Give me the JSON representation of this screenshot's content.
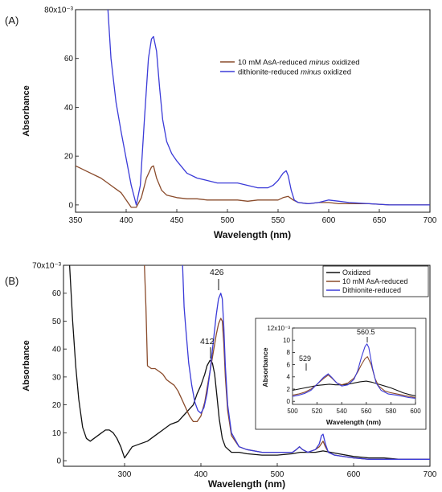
{
  "chart_data": [
    {
      "panel_label": "(A)",
      "type": "line",
      "xlabel": "Wavelength (nm)",
      "ylabel": "Absorbance",
      "xlim": [
        350,
        700
      ],
      "ylim": [
        -0.003,
        0.08
      ],
      "x_ticks": [
        350,
        400,
        450,
        500,
        550,
        600,
        650,
        700
      ],
      "x_tick_labels": [
        "350",
        "400",
        "450",
        "500",
        "550",
        "600",
        "650",
        "700"
      ],
      "y_ticks": [
        0,
        0.02,
        0.04,
        0.06,
        0.08
      ],
      "y_tick_labels": [
        "0",
        "20",
        "40",
        "60",
        "80x10⁻³"
      ],
      "legend_placement": "center-right",
      "series": [
        {
          "name": "10 mM AsA-reduced minus oxidized",
          "legend": [
            "10 mM AsA-reduced ",
            "minus",
            " oxidized"
          ],
          "color": "#8a4b2b",
          "x": [
            350,
            355,
            360,
            365,
            370,
            375,
            380,
            385,
            390,
            395,
            400,
            405,
            410,
            415,
            420,
            425,
            427,
            430,
            435,
            440,
            450,
            460,
            470,
            480,
            490,
            500,
            510,
            520,
            530,
            540,
            550,
            555,
            560,
            565,
            570,
            580,
            590,
            600,
            610,
            620,
            640,
            660,
            680,
            700
          ],
          "y": [
            0.016,
            0.015,
            0.014,
            0.013,
            0.012,
            0.011,
            0.0095,
            0.008,
            0.0065,
            0.005,
            0.002,
            -0.001,
            -0.001,
            0.003,
            0.011,
            0.0155,
            0.016,
            0.011,
            0.006,
            0.004,
            0.003,
            0.0025,
            0.0025,
            0.002,
            0.002,
            0.002,
            0.002,
            0.0015,
            0.002,
            0.002,
            0.002,
            0.003,
            0.0035,
            0.002,
            0.001,
            0.0005,
            0.001,
            0.001,
            0.0005,
            0.0005,
            0.0005,
            0.0,
            0.0,
            0.0
          ]
        },
        {
          "name": "dithionite-reduced minus oxidized",
          "legend": [
            "dithionite-reduced ",
            "minus",
            " oxidized"
          ],
          "color": "#3b3bd8",
          "x": [
            382,
            385,
            390,
            395,
            400,
            405,
            410,
            414,
            418,
            422,
            425,
            427,
            430,
            433,
            436,
            440,
            445,
            450,
            460,
            470,
            480,
            490,
            500,
            510,
            520,
            530,
            540,
            545,
            550,
            555,
            558,
            560,
            563,
            566,
            570,
            580,
            590,
            600,
            610,
            620,
            640,
            660,
            680,
            700
          ],
          "y": [
            0.08,
            0.06,
            0.042,
            0.03,
            0.019,
            0.008,
            0.0,
            0.008,
            0.035,
            0.06,
            0.068,
            0.069,
            0.063,
            0.048,
            0.035,
            0.026,
            0.021,
            0.018,
            0.013,
            0.011,
            0.01,
            0.009,
            0.009,
            0.009,
            0.008,
            0.007,
            0.007,
            0.008,
            0.01,
            0.013,
            0.014,
            0.012,
            0.006,
            0.002,
            0.001,
            0.0005,
            0.001,
            0.002,
            0.0015,
            0.001,
            0.0005,
            0.0,
            0.0,
            0.0
          ]
        }
      ]
    },
    {
      "panel_label": "(B)",
      "type": "line",
      "xlabel": "Wavelength (nm)",
      "ylabel": "Absorbance",
      "xlim": [
        220,
        700
      ],
      "ylim": [
        -0.002,
        0.07
      ],
      "x_ticks": [
        300,
        400,
        500,
        600,
        700
      ],
      "x_tick_labels": [
        "300",
        "400",
        "500",
        "600",
        "700"
      ],
      "y_ticks": [
        0,
        0.01,
        0.02,
        0.03,
        0.04,
        0.05,
        0.06,
        0.07
      ],
      "y_tick_labels": [
        "0",
        "10",
        "20",
        "30",
        "40",
        "50",
        "60",
        "70x10⁻³"
      ],
      "legend_placement": "top-right",
      "annotations": [
        "412",
        "426"
      ],
      "series": [
        {
          "name": "Oxidized",
          "color": "#111111",
          "x": [
            228,
            232,
            236,
            240,
            245,
            250,
            255,
            260,
            265,
            270,
            275,
            280,
            285,
            290,
            295,
            300,
            305,
            310,
            320,
            330,
            340,
            350,
            360,
            370,
            380,
            390,
            395,
            400,
            405,
            408,
            412,
            415,
            418,
            421,
            424,
            428,
            432,
            436,
            440,
            450,
            460,
            480,
            500,
            520,
            530,
            540,
            550,
            560,
            570,
            580,
            600,
            620,
            640,
            660,
            680,
            700
          ],
          "y": [
            0.07,
            0.05,
            0.034,
            0.022,
            0.012,
            0.008,
            0.007,
            0.008,
            0.009,
            0.01,
            0.011,
            0.011,
            0.01,
            0.008,
            0.005,
            0.001,
            0.003,
            0.005,
            0.006,
            0.007,
            0.009,
            0.011,
            0.013,
            0.014,
            0.017,
            0.02,
            0.024,
            0.027,
            0.031,
            0.034,
            0.036,
            0.035,
            0.031,
            0.023,
            0.015,
            0.008,
            0.005,
            0.004,
            0.003,
            0.003,
            0.0025,
            0.002,
            0.002,
            0.0025,
            0.003,
            0.003,
            0.003,
            0.0035,
            0.003,
            0.0025,
            0.0015,
            0.001,
            0.001,
            0.0005,
            0.0005,
            0.0005
          ]
        },
        {
          "name": "10 mM AsA-reduced",
          "color": "#8a4b2b",
          "x": [
            326,
            328,
            330,
            335,
            340,
            345,
            350,
            355,
            360,
            365,
            370,
            375,
            380,
            385,
            390,
            395,
            400,
            405,
            410,
            415,
            420,
            423,
            426,
            428,
            430,
            432,
            435,
            440,
            450,
            460,
            480,
            500,
            520,
            525,
            529,
            533,
            540,
            550,
            555,
            560,
            563,
            567,
            575,
            600,
            620,
            640,
            660,
            680,
            700
          ],
          "y": [
            0.07,
            0.055,
            0.034,
            0.033,
            0.033,
            0.032,
            0.031,
            0.029,
            0.028,
            0.027,
            0.025,
            0.022,
            0.019,
            0.016,
            0.014,
            0.014,
            0.016,
            0.021,
            0.029,
            0.037,
            0.045,
            0.049,
            0.051,
            0.05,
            0.042,
            0.03,
            0.018,
            0.009,
            0.005,
            0.004,
            0.003,
            0.003,
            0.003,
            0.004,
            0.005,
            0.004,
            0.003,
            0.004,
            0.005,
            0.007,
            0.005,
            0.003,
            0.002,
            0.001,
            0.0005,
            0.0005,
            0.0005,
            0.0005,
            0.0005
          ]
        },
        {
          "name": "Dithionite-reduced",
          "color": "#3b3bd8",
          "x": [
            376,
            378,
            380,
            384,
            388,
            392,
            396,
            400,
            404,
            408,
            412,
            416,
            420,
            423,
            426,
            428,
            430,
            432,
            435,
            440,
            450,
            460,
            480,
            500,
            520,
            525,
            529,
            533,
            540,
            550,
            555,
            558,
            560,
            563,
            567,
            575,
            600,
            620,
            640,
            660,
            680,
            700
          ],
          "y": [
            0.07,
            0.055,
            0.048,
            0.035,
            0.027,
            0.021,
            0.018,
            0.017,
            0.019,
            0.024,
            0.032,
            0.042,
            0.052,
            0.058,
            0.06,
            0.058,
            0.048,
            0.034,
            0.02,
            0.01,
            0.005,
            0.004,
            0.003,
            0.003,
            0.003,
            0.004,
            0.005,
            0.004,
            0.003,
            0.004,
            0.006,
            0.009,
            0.0095,
            0.006,
            0.003,
            0.002,
            0.001,
            0.0005,
            0.0005,
            0.0005,
            0.0005,
            0.0005
          ]
        }
      ],
      "inset": {
        "type": "line",
        "xlabel": "Wavelength (nm)",
        "ylabel": "Absorbance",
        "xlim": [
          500,
          600
        ],
        "ylim": [
          -0.0005,
          0.012
        ],
        "x_ticks": [
          500,
          520,
          540,
          560,
          580,
          600
        ],
        "x_tick_labels": [
          "500",
          "520",
          "540",
          "560",
          "580",
          "600"
        ],
        "y_ticks": [
          0,
          0.002,
          0.004,
          0.006,
          0.008,
          0.01,
          0.012
        ],
        "y_tick_labels": [
          "0",
          "2",
          "4",
          "6",
          "8",
          "10",
          "12x10⁻³"
        ],
        "annotations": [
          "529",
          "560.5"
        ],
        "series": [
          {
            "name": "Oxidized",
            "color": "#111111",
            "x": [
              500,
              505,
              510,
              515,
              520,
              525,
              530,
              535,
              540,
              545,
              550,
              555,
              560,
              565,
              570,
              575,
              580,
              585,
              590,
              595,
              600
            ],
            "y": [
              0.0018,
              0.002,
              0.0022,
              0.0024,
              0.0026,
              0.0027,
              0.0028,
              0.0027,
              0.0027,
              0.0028,
              0.003,
              0.0032,
              0.0033,
              0.0031,
              0.0028,
              0.0025,
              0.0022,
              0.0018,
              0.0014,
              0.0011,
              0.0009
            ]
          },
          {
            "name": "10 mM AsA-reduced",
            "color": "#8a4b2b",
            "x": [
              500,
              505,
              510,
              515,
              520,
              525,
              529,
              532,
              536,
              540,
              545,
              550,
              553,
              556,
              559,
              561,
              564,
              567,
              570,
              575,
              580,
              585,
              590,
              595,
              600
            ],
            "y": [
              0.001,
              0.0012,
              0.0015,
              0.002,
              0.0028,
              0.0037,
              0.0043,
              0.0038,
              0.003,
              0.0027,
              0.003,
              0.0038,
              0.0048,
              0.006,
              0.007,
              0.0073,
              0.006,
              0.0038,
              0.0025,
              0.0017,
              0.0014,
              0.0012,
              0.001,
              0.0008,
              0.0006
            ]
          },
          {
            "name": "Dithionite-reduced",
            "color": "#3b3bd8",
            "x": [
              500,
              505,
              510,
              515,
              520,
              525,
              529,
              532,
              536,
              540,
              545,
              550,
              553,
              556,
              559,
              560.5,
              562,
              565,
              568,
              572,
              578,
              585,
              590,
              595,
              600
            ],
            "y": [
              0.0008,
              0.001,
              0.0013,
              0.0018,
              0.0028,
              0.0039,
              0.0045,
              0.0039,
              0.003,
              0.0025,
              0.0027,
              0.0036,
              0.005,
              0.0072,
              0.009,
              0.0094,
              0.0088,
              0.0055,
              0.003,
              0.0018,
              0.0012,
              0.001,
              0.0008,
              0.0006,
              0.0005
            ]
          }
        ]
      }
    }
  ]
}
